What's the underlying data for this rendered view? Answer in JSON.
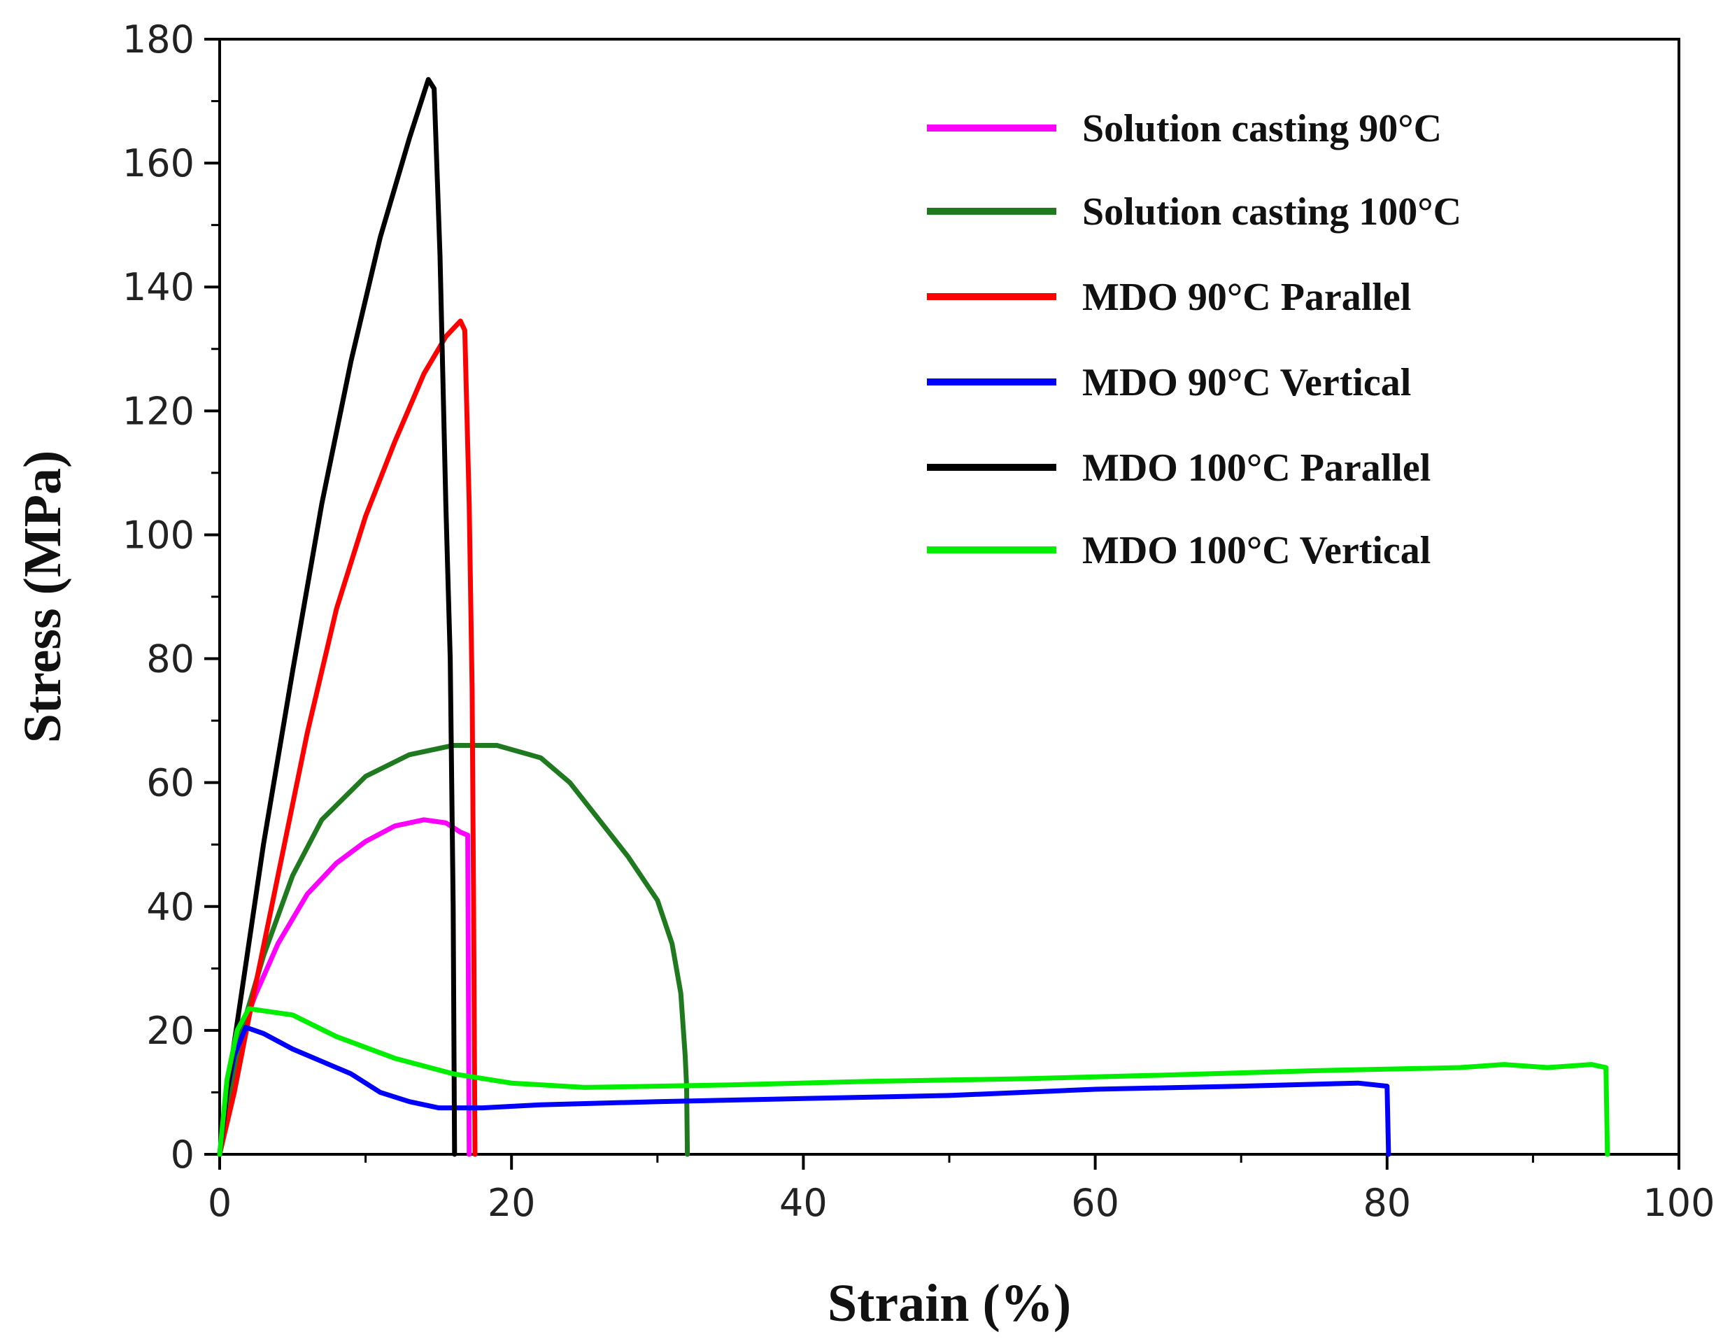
{
  "chart_data": {
    "type": "line",
    "title": "",
    "xlabel": "Strain (%)",
    "ylabel": "Stress (MPa)",
    "xlim": [
      0,
      100
    ],
    "ylim": [
      0,
      180
    ],
    "x_ticks": [
      0,
      20,
      40,
      60,
      80,
      100
    ],
    "y_ticks": [
      0,
      20,
      40,
      60,
      80,
      100,
      120,
      140,
      160,
      180
    ],
    "grid": false,
    "legend_position": "top-right",
    "series": [
      {
        "name": "Solution casting 90°C",
        "color": "#ff00ff",
        "points": [
          [
            0,
            0
          ],
          [
            0.3,
            4
          ],
          [
            0.8,
            12
          ],
          [
            1.5,
            20
          ],
          [
            2.5,
            26
          ],
          [
            4,
            34
          ],
          [
            6,
            42
          ],
          [
            8,
            47
          ],
          [
            10,
            50.5
          ],
          [
            12,
            53
          ],
          [
            14,
            54
          ],
          [
            15.5,
            53.5
          ],
          [
            16.5,
            52
          ],
          [
            17,
            51.5
          ],
          [
            17.1,
            0
          ]
        ]
      },
      {
        "name": "Solution casting 100°C",
        "color": "#1f7a1f",
        "points": [
          [
            0,
            0
          ],
          [
            0.5,
            8
          ],
          [
            1.5,
            20
          ],
          [
            3,
            32
          ],
          [
            5,
            45
          ],
          [
            7,
            54
          ],
          [
            10,
            61
          ],
          [
            13,
            64.5
          ],
          [
            16,
            66
          ],
          [
            19,
            66
          ],
          [
            22,
            64
          ],
          [
            24,
            60
          ],
          [
            26,
            54
          ],
          [
            28,
            48
          ],
          [
            30,
            41
          ],
          [
            31,
            34
          ],
          [
            31.6,
            26
          ],
          [
            31.9,
            16
          ],
          [
            32,
            11
          ],
          [
            32.05,
            0
          ]
        ]
      },
      {
        "name": "MDO 90°C Parallel",
        "color": "#ff0000",
        "points": [
          [
            0,
            0
          ],
          [
            1,
            10
          ],
          [
            2,
            22
          ],
          [
            4,
            45
          ],
          [
            6,
            68
          ],
          [
            8,
            88
          ],
          [
            10,
            103
          ],
          [
            12,
            115
          ],
          [
            14,
            126
          ],
          [
            15.5,
            132
          ],
          [
            16.5,
            134.5
          ],
          [
            16.8,
            133
          ],
          [
            17.1,
            105
          ],
          [
            17.3,
            75
          ],
          [
            17.4,
            40
          ],
          [
            17.5,
            0
          ]
        ]
      },
      {
        "name": "MDO 90°C Vertical",
        "color": "#0000ff",
        "points": [
          [
            0,
            0
          ],
          [
            0.5,
            10
          ],
          [
            1,
            16
          ],
          [
            1.8,
            20.5
          ],
          [
            3,
            19.5
          ],
          [
            5,
            17
          ],
          [
            7,
            15
          ],
          [
            9,
            13
          ],
          [
            11,
            10
          ],
          [
            13,
            8.5
          ],
          [
            15,
            7.5
          ],
          [
            18,
            7.5
          ],
          [
            22,
            8
          ],
          [
            30,
            8.5
          ],
          [
            40,
            9
          ],
          [
            50,
            9.5
          ],
          [
            60,
            10.5
          ],
          [
            70,
            11
          ],
          [
            78,
            11.5
          ],
          [
            80,
            11
          ],
          [
            80.1,
            0
          ]
        ]
      },
      {
        "name": "MDO 100°C Parallel",
        "color": "#000000",
        "points": [
          [
            0,
            0
          ],
          [
            0.5,
            10
          ],
          [
            1.5,
            26
          ],
          [
            3,
            50
          ],
          [
            5,
            78
          ],
          [
            7,
            105
          ],
          [
            9,
            128
          ],
          [
            11,
            148
          ],
          [
            13,
            164
          ],
          [
            14.3,
            173.5
          ],
          [
            14.7,
            172
          ],
          [
            15.1,
            145
          ],
          [
            15.5,
            105
          ],
          [
            15.8,
            80
          ],
          [
            16,
            40
          ],
          [
            16.1,
            0
          ]
        ]
      },
      {
        "name": "MDO 100°C Vertical",
        "color": "#00ee00",
        "points": [
          [
            0,
            0
          ],
          [
            0.5,
            12
          ],
          [
            1.2,
            20
          ],
          [
            2,
            23.5
          ],
          [
            5,
            22.5
          ],
          [
            8,
            19
          ],
          [
            12,
            15.5
          ],
          [
            16,
            13
          ],
          [
            20,
            11.5
          ],
          [
            25,
            10.8
          ],
          [
            35,
            11.2
          ],
          [
            45,
            11.8
          ],
          [
            55,
            12.2
          ],
          [
            65,
            12.8
          ],
          [
            75,
            13.5
          ],
          [
            85,
            14
          ],
          [
            88,
            14.5
          ],
          [
            91,
            14
          ],
          [
            94,
            14.5
          ],
          [
            95,
            14
          ],
          [
            95.1,
            0
          ]
        ]
      }
    ]
  }
}
